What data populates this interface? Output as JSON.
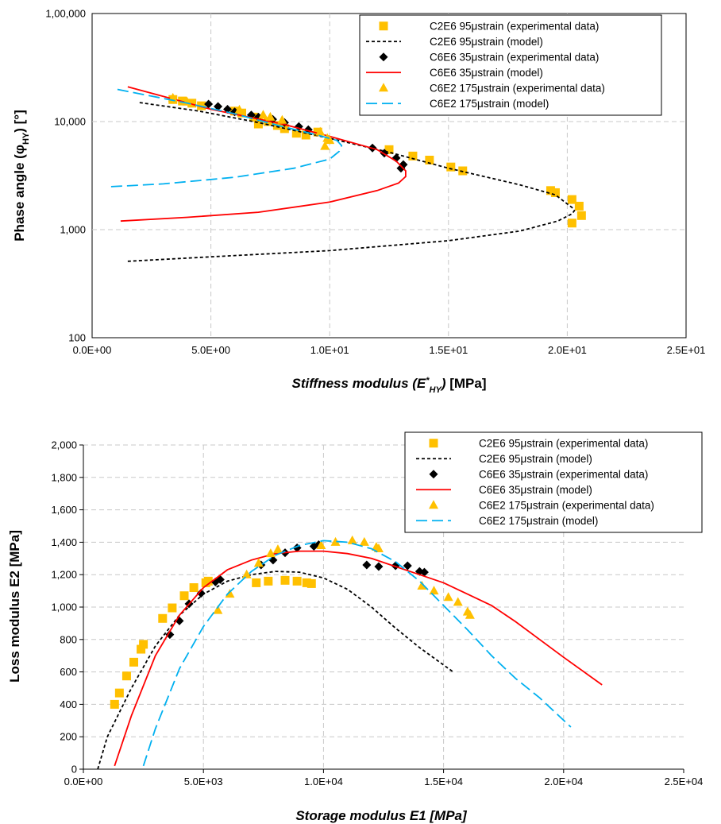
{
  "chart_data": [
    {
      "type": "scatter",
      "xlabel": "Stiffness modulus (E*HY) [MPa]",
      "xlabel_parts": {
        "main": "Stiffness modulus (",
        "E": "E",
        "sup": "*",
        "sub": "HY",
        "close": ")",
        "unit": " [MPa]"
      },
      "ylabel": "Phase angle (φHY) [°]",
      "ylabel_parts": {
        "main": "Phase angle (φ",
        "sub": "HY",
        "unit": ") [°]"
      },
      "xlim": [
        0,
        25
      ],
      "ylim": [
        100,
        100000
      ],
      "yscale": "log",
      "grid": true,
      "legend_position": "top-right",
      "x_ticks": [
        0,
        5,
        10,
        15,
        20,
        25
      ],
      "x_tick_labels": [
        "0.0E+00",
        "5.0E+00",
        "1.0E+01",
        "1.5E+01",
        "2.0E+01",
        "2.5E+01"
      ],
      "y_ticks": [
        100,
        1000,
        10000,
        100000
      ],
      "y_tick_labels": [
        "100",
        "1,000",
        "10,000",
        "1,00,000"
      ],
      "series": [
        {
          "name": "C2E6 95μstrain (experimental data)",
          "kind": "marker",
          "marker": "square",
          "color": "#FFC000",
          "points": [
            [
              3.4,
              16000
            ],
            [
              3.8,
              15500
            ],
            [
              4.2,
              14800
            ],
            [
              4.6,
              14000
            ],
            [
              6.0,
              12500
            ],
            [
              6.3,
              12000
            ],
            [
              6.8,
              11000
            ],
            [
              7.0,
              10300
            ],
            [
              7.0,
              9500
            ],
            [
              7.4,
              10000
            ],
            [
              7.8,
              9200
            ],
            [
              8.1,
              8600
            ],
            [
              8.6,
              7800
            ],
            [
              9.0,
              7500
            ],
            [
              9.5,
              8000
            ],
            [
              12.5,
              5500
            ],
            [
              13.5,
              4800
            ],
            [
              14.2,
              4400
            ],
            [
              15.1,
              3800
            ],
            [
              15.6,
              3500
            ],
            [
              19.3,
              2300
            ],
            [
              19.5,
              2200
            ],
            [
              20.2,
              1900
            ],
            [
              20.5,
              1650
            ],
            [
              20.6,
              1350
            ],
            [
              20.2,
              1150
            ]
          ]
        },
        {
          "name": "C2E6 95μstrain (model)",
          "kind": "line",
          "dash": "4,3",
          "color": "#000000",
          "points": [
            [
              1.5,
              510
            ],
            [
              5,
              560
            ],
            [
              10,
              640
            ],
            [
              15,
              790
            ],
            [
              18,
              970
            ],
            [
              19.6,
              1200
            ],
            [
              20.2,
              1400
            ],
            [
              20.3,
              1500
            ],
            [
              20.2,
              1600
            ],
            [
              19.5,
              2100
            ],
            [
              18,
              2600
            ],
            [
              15,
              3700
            ],
            [
              12.5,
              5200
            ],
            [
              10,
              7000
            ],
            [
              7,
              9800
            ],
            [
              4.5,
              12500
            ],
            [
              2,
              15000
            ]
          ]
        },
        {
          "name": "C6E6 35μstrain (experimental data)",
          "kind": "marker",
          "marker": "diamond",
          "color": "#000000",
          "points": [
            [
              4.9,
              14500
            ],
            [
              5.3,
              13800
            ],
            [
              5.7,
              13000
            ],
            [
              6.0,
              12300
            ],
            [
              6.7,
              11500
            ],
            [
              7.0,
              11000
            ],
            [
              7.6,
              10500
            ],
            [
              8.1,
              9800
            ],
            [
              8.7,
              9000
            ],
            [
              9.1,
              8400
            ],
            [
              11.8,
              5700
            ],
            [
              12.3,
              5100
            ],
            [
              12.8,
              4600
            ],
            [
              13.1,
              4000
            ],
            [
              13.0,
              3700
            ]
          ]
        },
        {
          "name": "C6E6 35μstrain (model)",
          "kind": "line",
          "dash": "",
          "color": "#FF0000",
          "points": [
            [
              1.2,
              1200
            ],
            [
              4,
              1300
            ],
            [
              7,
              1450
            ],
            [
              10,
              1800
            ],
            [
              12,
              2300
            ],
            [
              12.9,
              2700
            ],
            [
              13.2,
              3100
            ],
            [
              13.2,
              3500
            ],
            [
              12.8,
              4300
            ],
            [
              12,
              5500
            ],
            [
              10,
              7300
            ],
            [
              8,
              9500
            ],
            [
              5,
              13000
            ],
            [
              1.5,
              21000
            ]
          ]
        },
        {
          "name": "C6E2 175μstrain (experimental data)",
          "kind": "marker",
          "marker": "triangle",
          "color": "#FFC000",
          "points": [
            [
              3.4,
              16500
            ],
            [
              4.0,
              15200
            ],
            [
              6.2,
              12800
            ],
            [
              7.2,
              11500
            ],
            [
              7.5,
              11000
            ],
            [
              8.0,
              10300
            ],
            [
              9.6,
              8000
            ],
            [
              9.9,
              7000
            ],
            [
              10.0,
              6700
            ],
            [
              9.8,
              5900
            ]
          ]
        },
        {
          "name": "C6E2 175μstrain (model)",
          "kind": "line",
          "dash": "14,6",
          "color": "#00B0F0",
          "points": [
            [
              0.8,
              2500
            ],
            [
              3,
              2650
            ],
            [
              6,
              3050
            ],
            [
              8.5,
              3700
            ],
            [
              10,
              4500
            ],
            [
              10.4,
              5300
            ],
            [
              10.5,
              6000
            ],
            [
              10.3,
              6700
            ],
            [
              9.5,
              7500
            ],
            [
              8,
              9000
            ],
            [
              6,
              11800
            ],
            [
              4,
              14800
            ],
            [
              1,
              20000
            ]
          ]
        }
      ]
    },
    {
      "type": "scatter",
      "xlabel": "Storage modulus E1 [MPa]",
      "ylabel": "Loss modulus E2 [MPa]",
      "xlim": [
        0,
        25000
      ],
      "ylim": [
        0,
        2000
      ],
      "grid": true,
      "legend_position": "top-right",
      "x_ticks": [
        0,
        5000,
        10000,
        15000,
        20000,
        25000
      ],
      "x_tick_labels": [
        "0.0E+00",
        "5.0E+03",
        "1.0E+04",
        "1.5E+04",
        "2.0E+04",
        "2.5E+04"
      ],
      "y_ticks": [
        0,
        200,
        400,
        600,
        800,
        1000,
        1200,
        1400,
        1600,
        1800,
        2000
      ],
      "y_tick_labels": [
        "0",
        "200",
        "400",
        "600",
        "800",
        "1,000",
        "1,200",
        "1,400",
        "1,600",
        "1,800",
        "2,000"
      ],
      "series": [
        {
          "name": "C2E6 95μstrain (experimental data)",
          "kind": "marker",
          "marker": "square",
          "color": "#FFC000",
          "points": [
            [
              1300,
              400
            ],
            [
              1500,
              470
            ],
            [
              1800,
              575
            ],
            [
              2100,
              660
            ],
            [
              2400,
              740
            ],
            [
              2500,
              770
            ],
            [
              3300,
              930
            ],
            [
              3700,
              995
            ],
            [
              4200,
              1070
            ],
            [
              4600,
              1120
            ],
            [
              5100,
              1150
            ],
            [
              5200,
              1160
            ],
            [
              7200,
              1150
            ],
            [
              7700,
              1160
            ],
            [
              8400,
              1165
            ],
            [
              8900,
              1160
            ],
            [
              9300,
              1150
            ],
            [
              9500,
              1145
            ]
          ]
        },
        {
          "name": "C2E6 95μstrain (model)",
          "kind": "line",
          "dash": "4,3",
          "color": "#000000",
          "points": [
            [
              600,
              0
            ],
            [
              1000,
              200
            ],
            [
              2000,
              500
            ],
            [
              3000,
              760
            ],
            [
              4000,
              950
            ],
            [
              5000,
              1080
            ],
            [
              6000,
              1160
            ],
            [
              7000,
              1200
            ],
            [
              8000,
              1220
            ],
            [
              9000,
              1215
            ],
            [
              10000,
              1180
            ],
            [
              11000,
              1110
            ],
            [
              12000,
              1000
            ],
            [
              13000,
              870
            ],
            [
              14000,
              750
            ],
            [
              15400,
              600
            ]
          ]
        },
        {
          "name": "C6E6 35μstrain (experimental data)",
          "kind": "marker",
          "marker": "diamond",
          "color": "#000000",
          "points": [
            [
              3600,
              830
            ],
            [
              4000,
              915
            ],
            [
              4400,
              1020
            ],
            [
              4900,
              1085
            ],
            [
              5500,
              1155
            ],
            [
              5700,
              1170
            ],
            [
              7400,
              1260
            ],
            [
              7900,
              1290
            ],
            [
              8400,
              1335
            ],
            [
              8900,
              1365
            ],
            [
              9600,
              1375
            ],
            [
              9800,
              1385
            ],
            [
              11800,
              1260
            ],
            [
              12300,
              1250
            ],
            [
              13000,
              1255
            ],
            [
              13500,
              1255
            ],
            [
              14000,
              1220
            ],
            [
              14200,
              1215
            ]
          ]
        },
        {
          "name": "C6E6 35μstrain (model)",
          "kind": "line",
          "dash": "",
          "color": "#FF0000",
          "points": [
            [
              1300,
              20
            ],
            [
              2000,
              330
            ],
            [
              3000,
              700
            ],
            [
              4000,
              950
            ],
            [
              5000,
              1120
            ],
            [
              6000,
              1230
            ],
            [
              7000,
              1290
            ],
            [
              8000,
              1330
            ],
            [
              9000,
              1345
            ],
            [
              10000,
              1345
            ],
            [
              11000,
              1330
            ],
            [
              12000,
              1300
            ],
            [
              13000,
              1250
            ],
            [
              14000,
              1200
            ],
            [
              15000,
              1150
            ],
            [
              16000,
              1080
            ],
            [
              17000,
              1010
            ],
            [
              18000,
              910
            ],
            [
              19000,
              800
            ],
            [
              20000,
              690
            ],
            [
              21600,
              520
            ]
          ]
        },
        {
          "name": "C6E2 175μstrain (experimental data)",
          "kind": "marker",
          "marker": "triangle",
          "color": "#FFC000",
          "points": [
            [
              5600,
              980
            ],
            [
              6100,
              1080
            ],
            [
              6800,
              1200
            ],
            [
              7300,
              1270
            ],
            [
              7800,
              1330
            ],
            [
              8100,
              1355
            ],
            [
              9900,
              1380
            ],
            [
              10500,
              1400
            ],
            [
              11200,
              1410
            ],
            [
              11700,
              1400
            ],
            [
              12200,
              1370
            ],
            [
              12300,
              1360
            ],
            [
              14100,
              1130
            ],
            [
              14600,
              1100
            ],
            [
              15200,
              1060
            ],
            [
              15600,
              1030
            ],
            [
              16000,
              970
            ],
            [
              16100,
              950
            ]
          ]
        },
        {
          "name": "C6E2 175μstrain (model)",
          "kind": "line",
          "dash": "14,6",
          "color": "#00B0F0",
          "points": [
            [
              2500,
              20
            ],
            [
              3000,
              250
            ],
            [
              4000,
              620
            ],
            [
              5000,
              880
            ],
            [
              6000,
              1080
            ],
            [
              7000,
              1220
            ],
            [
              8000,
              1320
            ],
            [
              9000,
              1380
            ],
            [
              10000,
              1410
            ],
            [
              11000,
              1400
            ],
            [
              12000,
              1360
            ],
            [
              13000,
              1280
            ],
            [
              14000,
              1160
            ],
            [
              15000,
              1010
            ],
            [
              16000,
              860
            ],
            [
              17000,
              700
            ],
            [
              18000,
              560
            ],
            [
              19000,
              440
            ],
            [
              20300,
              260
            ]
          ]
        }
      ]
    }
  ]
}
